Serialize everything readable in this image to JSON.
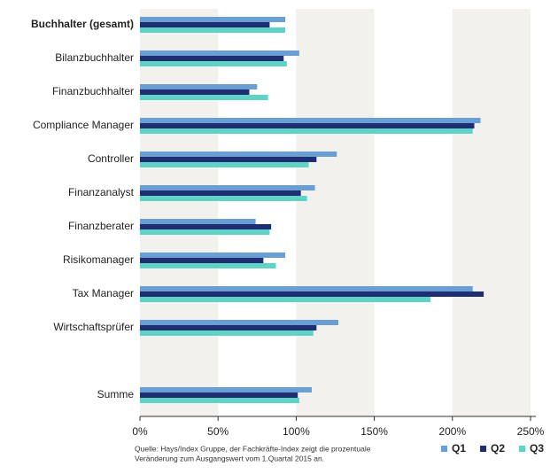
{
  "chart_data": {
    "type": "hbar",
    "categories": [
      "Buchhalter (gesamt)",
      "Bilanzbuchhalter",
      "Finanzbuchhalter",
      "Compliance Manager",
      "Controller",
      "Finanzanalyst",
      "Finanzberater",
      "Risikomanager",
      "Tax Manager",
      "Wirtschaftsprüfer",
      null,
      "Summe"
    ],
    "series": [
      {
        "name": "Q1",
        "color": "#6a9fd6",
        "values": [
          93,
          102,
          75,
          218,
          126,
          112,
          74,
          93,
          213,
          127,
          null,
          110
        ]
      },
      {
        "name": "Q2",
        "color": "#1f2e73",
        "values": [
          83,
          92,
          70,
          214,
          113,
          103,
          84,
          79,
          220,
          113,
          null,
          101
        ]
      },
      {
        "name": "Q3",
        "color": "#5fd3c6",
        "values": [
          93,
          94,
          82,
          213,
          108,
          107,
          83,
          87,
          186,
          111,
          null,
          102
        ]
      }
    ],
    "xlim": [
      0,
      250
    ],
    "xticks": [
      {
        "value": 0,
        "label": "0%"
      },
      {
        "value": 50,
        "label": "50%"
      },
      {
        "value": 100,
        "label": "100%"
      },
      {
        "value": 150,
        "label": "150%"
      },
      {
        "value": 200,
        "label": "200%"
      },
      {
        "value": 250,
        "label": "250%"
      }
    ],
    "band_color": "#f3f1ed",
    "source": [
      "Quelle: Hays/Index Gruppe, der Fachkräfte-Index zeigt die prozentuale",
      "Veränderung zum Ausgangswert vom 1.Quartal 2015 an."
    ]
  }
}
